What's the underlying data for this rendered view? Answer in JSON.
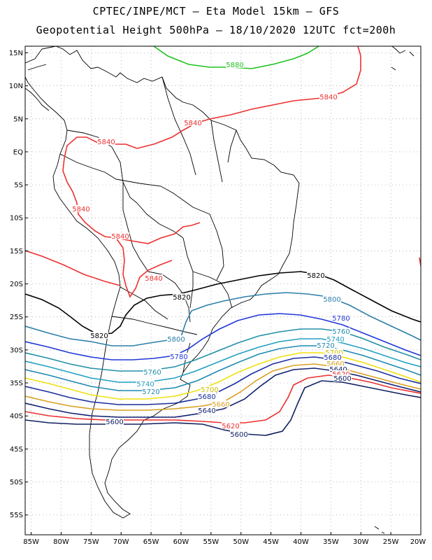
{
  "title": {
    "line1": "CPTEC/INPE/MCT –  Eta Model 15km – GFS",
    "line2": "Geopotential Height 500hPa – 18/10/2020 12UTC fct=200h"
  },
  "axes": {
    "lat_labels": [
      "15N",
      "10N",
      "5N",
      "EQ",
      "5S",
      "10S",
      "15S",
      "20S",
      "25S",
      "30S",
      "35S",
      "40S",
      "45S",
      "50S",
      "55S"
    ],
    "lon_labels": [
      "85W",
      "80W",
      "75W",
      "70W",
      "65W",
      "60W",
      "55W",
      "50W",
      "45W",
      "40W",
      "35W",
      "30W",
      "25W",
      "20W"
    ]
  },
  "colors": {
    "c5880": "#1fc21f",
    "c5840": "#ec3030",
    "c5820": "#000000",
    "c5800": "#2c7fa8",
    "c5780": "#1f38d8",
    "c5760": "#2290a8",
    "c5740": "#22a0c0",
    "c5720": "#1f8ab0",
    "c5700": "#f0e010",
    "c5680": "#1a2fa0",
    "c5660": "#d8a020",
    "c5640": "#102070",
    "c5620": "#ec3030",
    "c5600": "#102060"
  },
  "contour_labels": [
    {
      "text": "5880",
      "color": "#1fc21f"
    },
    {
      "text": "5840",
      "color": "#ec3030"
    },
    {
      "text": "5840",
      "color": "#ec3030"
    },
    {
      "text": "5840",
      "color": "#ec3030"
    },
    {
      "text": "5840",
      "color": "#ec3030"
    },
    {
      "text": "5840",
      "color": "#ec3030"
    },
    {
      "text": "5840",
      "color": "#ec3030"
    },
    {
      "text": "5820",
      "color": "#000000"
    },
    {
      "text": "5820",
      "color": "#000000"
    },
    {
      "text": "5820",
      "color": "#000000"
    },
    {
      "text": "5800",
      "color": "#2c7fa8"
    },
    {
      "text": "5800",
      "color": "#2c7fa8"
    },
    {
      "text": "5780",
      "color": "#1f38d8"
    },
    {
      "text": "5780",
      "color": "#1f38d8"
    },
    {
      "text": "5760",
      "color": "#2290a8"
    },
    {
      "text": "5760",
      "color": "#2290a8"
    },
    {
      "text": "5740",
      "color": "#22a0c0"
    },
    {
      "text": "5740",
      "color": "#22a0c0"
    },
    {
      "text": "5720",
      "color": "#1f8ab0"
    },
    {
      "text": "5720",
      "color": "#1f8ab0"
    },
    {
      "text": "5700",
      "color": "#d0c000"
    },
    {
      "text": "5700",
      "color": "#d0c000"
    },
    {
      "text": "5680",
      "color": "#1a2fa0"
    },
    {
      "text": "5680",
      "color": "#1a2fa0"
    },
    {
      "text": "5660",
      "color": "#d8a020"
    },
    {
      "text": "5660",
      "color": "#d8a020"
    },
    {
      "text": "5640",
      "color": "#102070"
    },
    {
      "text": "5640",
      "color": "#102070"
    },
    {
      "text": "5620",
      "color": "#ec3030"
    },
    {
      "text": "5620",
      "color": "#ec3030"
    },
    {
      "text": "5600",
      "color": "#102060"
    },
    {
      "text": "5600",
      "color": "#102060"
    },
    {
      "text": "5600",
      "color": "#102060"
    }
  ]
}
